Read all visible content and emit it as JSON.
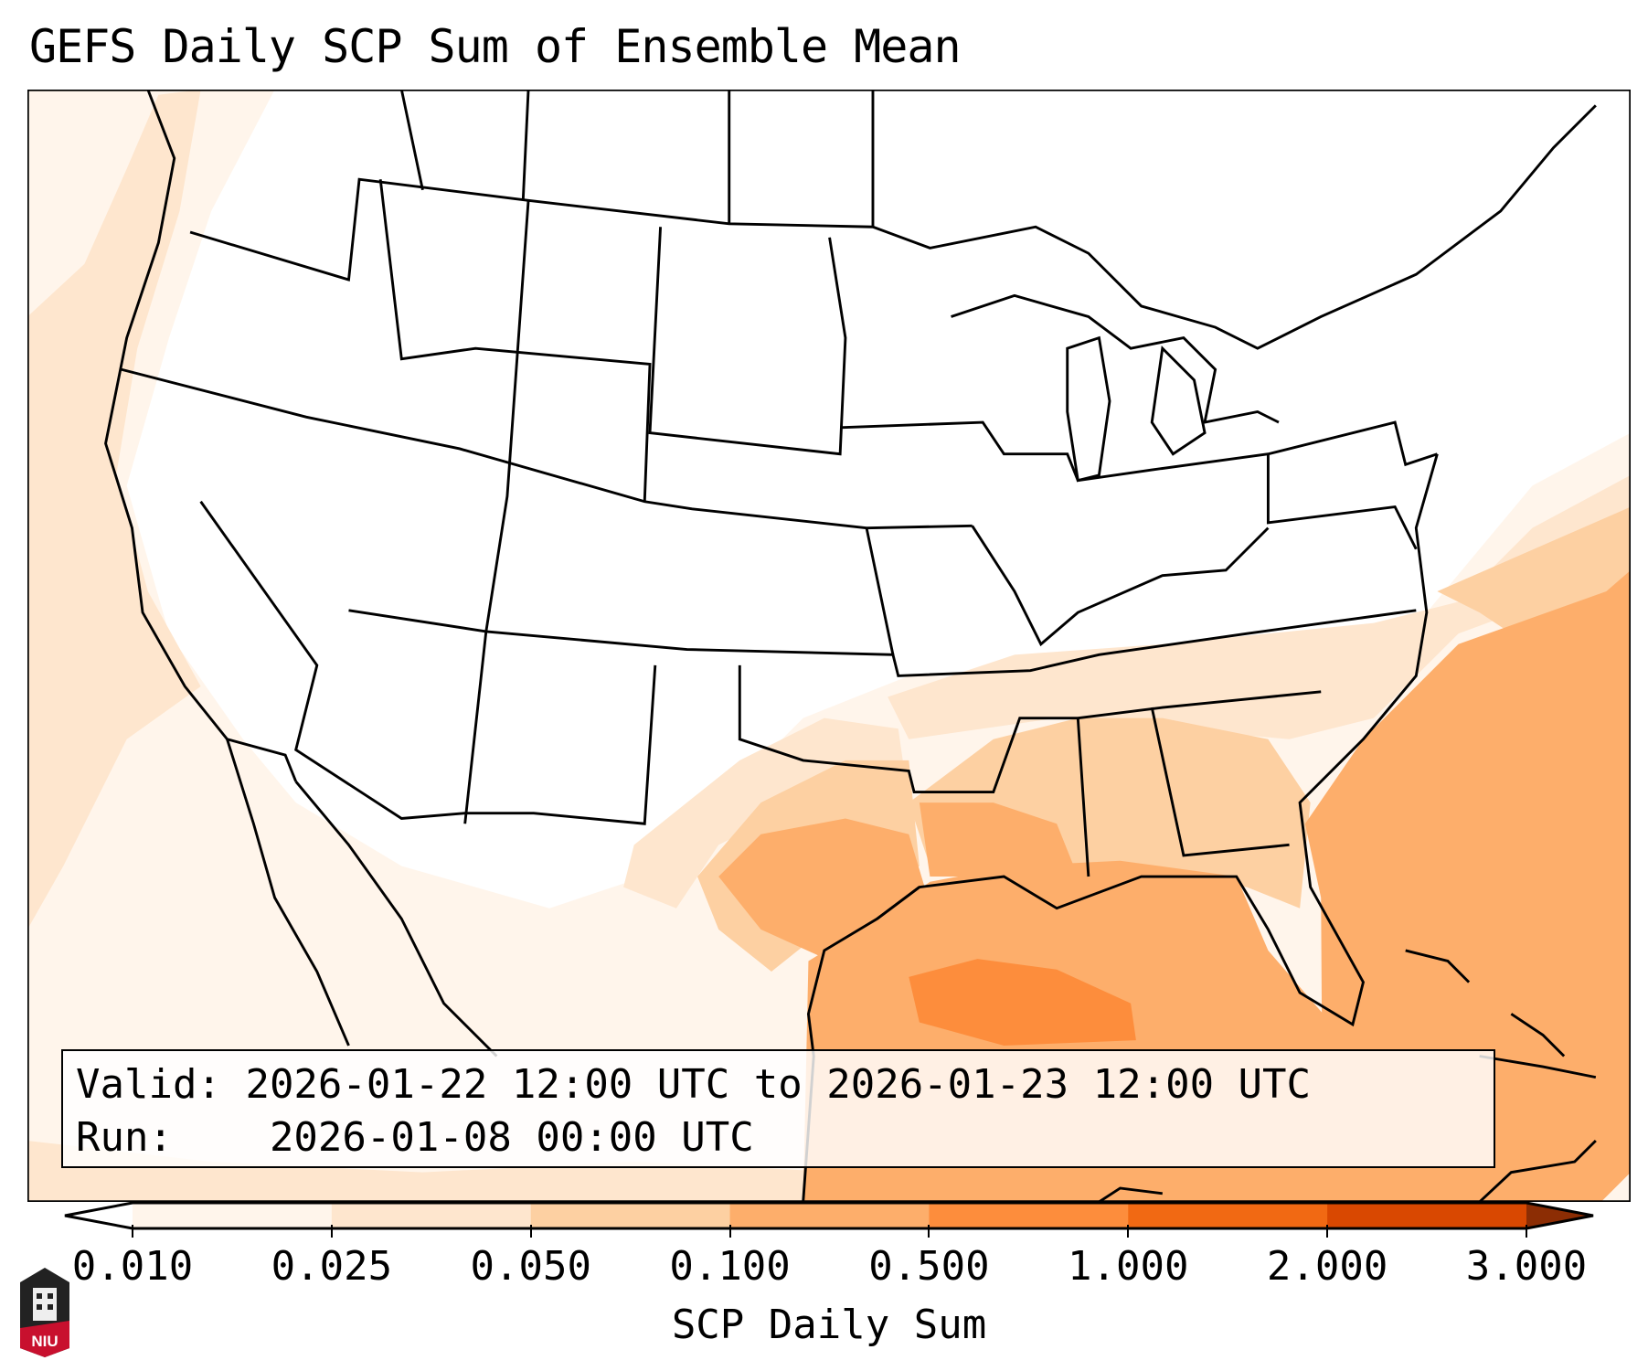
{
  "title": "GEFS Daily SCP Sum of Ensemble Mean",
  "info": {
    "valid_label": "Valid:",
    "valid_value": "2026-01-22 12:00 UTC to 2026-01-23 12:00 UTC",
    "run_label": "Run:",
    "run_value": "2026-01-08 00:00 UTC"
  },
  "colorbar": {
    "label": "SCP Daily Sum",
    "ticks": [
      "0.010",
      "0.025",
      "0.050",
      "0.100",
      "0.500",
      "1.000",
      "2.000",
      "3.000"
    ],
    "colors": [
      "#fff5eb",
      "#fee6ce",
      "#fdd0a2",
      "#fdae6b",
      "#fd8d3c",
      "#f16913",
      "#d94801"
    ],
    "under_color": "#ffffff",
    "over_color": "#8c2d04"
  },
  "logo": {
    "text": "NIU"
  }
}
